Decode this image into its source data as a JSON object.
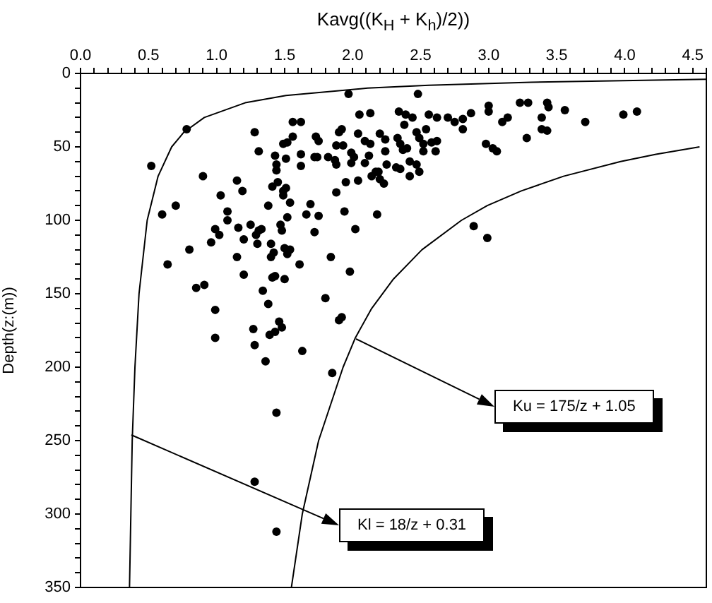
{
  "chart_data": {
    "type": "scatter",
    "xlabel": "Kavg((K$_{H}$ + K$_{h}$)/2))",
    "ylabel": "Depth(z:(m))",
    "xlim": [
      0,
      4.6
    ],
    "ylim": [
      350,
      0
    ],
    "xticks": [
      {
        "value": 0,
        "label": "0.0"
      },
      {
        "value": 0.1,
        "label": null
      },
      {
        "value": 0.2,
        "label": null
      },
      {
        "value": 0.3,
        "label": null
      },
      {
        "value": 0.4,
        "label": null
      },
      {
        "value": 0.5,
        "label": "0.5"
      },
      {
        "value": 0.6,
        "label": null
      },
      {
        "value": 0.7,
        "label": null
      },
      {
        "value": 0.8,
        "label": null
      },
      {
        "value": 0.9,
        "label": null
      },
      {
        "value": 1,
        "label": "1.0"
      },
      {
        "value": 1.1,
        "label": null
      },
      {
        "value": 1.2,
        "label": null
      },
      {
        "value": 1.3,
        "label": null
      },
      {
        "value": 1.4,
        "label": null
      },
      {
        "value": 1.5,
        "label": "1.5"
      },
      {
        "value": 1.6,
        "label": null
      },
      {
        "value": 1.7,
        "label": null
      },
      {
        "value": 1.8,
        "label": null
      },
      {
        "value": 1.9,
        "label": null
      },
      {
        "value": 2,
        "label": "2.0"
      },
      {
        "value": 2.1,
        "label": null
      },
      {
        "value": 2.2,
        "label": null
      },
      {
        "value": 2.3,
        "label": null
      },
      {
        "value": 2.4,
        "label": null
      },
      {
        "value": 2.5,
        "label": "2.5"
      },
      {
        "value": 2.6,
        "label": null
      },
      {
        "value": 2.7,
        "label": null
      },
      {
        "value": 2.8,
        "label": null
      },
      {
        "value": 2.9,
        "label": null
      },
      {
        "value": 3,
        "label": "3.0"
      },
      {
        "value": 3.1,
        "label": null
      },
      {
        "value": 3.2,
        "label": null
      },
      {
        "value": 3.3,
        "label": null
      },
      {
        "value": 3.4,
        "label": null
      },
      {
        "value": 3.5,
        "label": "3.5"
      },
      {
        "value": 3.6,
        "label": null
      },
      {
        "value": 3.7,
        "label": null
      },
      {
        "value": 3.8,
        "label": null
      },
      {
        "value": 3.9,
        "label": null
      },
      {
        "value": 4,
        "label": "4.0"
      },
      {
        "value": 4.1,
        "label": null
      },
      {
        "value": 4.2,
        "label": null
      },
      {
        "value": 4.3,
        "label": null
      },
      {
        "value": 4.4,
        "label": null
      },
      {
        "value": 4.5,
        "label": "4.5"
      },
      {
        "value": 4.6,
        "label": null
      }
    ],
    "yticks": [
      0,
      {
        "value": 10,
        "label": null
      },
      {
        "value": 20,
        "label": null
      },
      {
        "value": 30,
        "label": null
      },
      {
        "value": 40,
        "label": null
      },
      50,
      {
        "value": 60,
        "label": null
      },
      {
        "value": 70,
        "label": null
      },
      {
        "value": 80,
        "label": null
      },
      {
        "value": 90,
        "label": null
      },
      100,
      {
        "value": 110,
        "label": null
      },
      {
        "value": 120,
        "label": null
      },
      {
        "value": 130,
        "label": null
      },
      {
        "value": 140,
        "label": null
      },
      150,
      {
        "value": 160,
        "label": null
      },
      {
        "value": 170,
        "label": null
      },
      {
        "value": 180,
        "label": null
      },
      {
        "value": 190,
        "label": null
      },
      200,
      {
        "value": 210,
        "label": null
      },
      {
        "value": 220,
        "label": null
      },
      {
        "value": 230,
        "label": null
      },
      {
        "value": 240,
        "label": null
      },
      250,
      {
        "value": 260,
        "label": null
      },
      {
        "value": 270,
        "label": null
      },
      {
        "value": 280,
        "label": null
      },
      {
        "value": 290,
        "label": null
      },
      300,
      {
        "value": 310,
        "label": null
      },
      {
        "value": 320,
        "label": null
      },
      {
        "value": 330,
        "label": null
      },
      {
        "value": 340,
        "label": null
      },
      350
    ],
    "grid": false,
    "legend": false,
    "series": [
      {
        "marker": "circle",
        "color": "#000000",
        "x": [
          1.97,
          2.48,
          0.78,
          1.28,
          0.52,
          0.9,
          1.56,
          1.62,
          2.05,
          2.13,
          2.34,
          2.39,
          2.44,
          2.38,
          2.56,
          2.62,
          2.7,
          2.75,
          2.81,
          2.87,
          3.0,
          3.0,
          3.14,
          3.1,
          3.23,
          3.29,
          3.43,
          3.44,
          3.56,
          3.39,
          3.39,
          3.43,
          3.28,
          3.71,
          3.99,
          4.09,
          2.81,
          2.98,
          3.03,
          3.06,
          1.92,
          1.9,
          1.73,
          1.75,
          1.56,
          1.49,
          2.04,
          2.09,
          2.13,
          2.2,
          2.24,
          2.47,
          2.54,
          2.33,
          2.35,
          2.49,
          2.52,
          2.58,
          2.62,
          2.37,
          2.4,
          2.52,
          2.61,
          1.88,
          1.93,
          1.99,
          2.01,
          2.12,
          2.24,
          1.62,
          1.72,
          1.74,
          1.82,
          1.87,
          1.88,
          1.62,
          1.99,
          2.09,
          2.17,
          2.19,
          2.25,
          2.32,
          2.35,
          2.42,
          2.47,
          2.49,
          2.42,
          1.95,
          2.04,
          2.14,
          2.2,
          2.23,
          1.88,
          1.49,
          1.54,
          1.69,
          1.66,
          1.75,
          1.94,
          2.18,
          1.52,
          1.72,
          2.02,
          2.89,
          2.99,
          1.5,
          1.52,
          1.61,
          1.84,
          1.98,
          1.8,
          1.92,
          1.9,
          1.31,
          1.52,
          1.43,
          1.44,
          1.44,
          1.51,
          1.15,
          1.19,
          1.41,
          1.45,
          1.51,
          1.49,
          1.38,
          1.03,
          1.08,
          1.08,
          1.25,
          1.31,
          1.33,
          1.29,
          1.16,
          0.99,
          1.02,
          0.96,
          1.2,
          1.3,
          1.4,
          1.42,
          1.47,
          1.48,
          1.54,
          1.4,
          1.15,
          1.2,
          0.64,
          0.6,
          0.7,
          0.8,
          1.41,
          1.43,
          1.5,
          0.85,
          0.91,
          1.34,
          1.38,
          0.99,
          1.27,
          0.99,
          1.46,
          1.48,
          1.43,
          1.39,
          1.28,
          1.63,
          1.36,
          1.85,
          1.44,
          1.28,
          1.44
        ],
        "values": [
          14,
          14,
          38,
          40,
          63,
          70,
          33,
          33,
          28,
          27,
          26,
          28,
          30,
          35,
          28,
          30,
          30,
          33,
          31,
          27,
          22,
          26,
          30,
          33,
          20,
          20,
          20,
          23,
          25,
          30,
          38,
          39,
          44,
          33,
          28,
          26,
          38,
          48,
          51,
          53,
          38,
          40,
          43,
          46,
          43,
          48,
          41,
          46,
          48,
          41,
          45,
          40,
          38,
          44,
          48,
          44,
          48,
          47,
          46,
          52,
          51,
          53,
          53,
          49,
          49,
          54,
          57,
          56,
          53,
          55,
          57,
          57,
          57,
          59,
          62,
          63,
          61,
          61,
          67,
          67,
          62,
          64,
          65,
          60,
          62,
          67,
          70,
          74,
          73,
          70,
          72,
          75,
          81,
          80,
          88,
          89,
          96,
          97,
          94,
          96,
          98,
          108,
          106,
          104,
          112,
          119,
          123,
          130,
          125,
          135,
          153,
          166,
          168,
          53,
          47,
          56,
          62,
          66,
          58,
          73,
          80,
          77,
          74,
          78,
          83,
          90,
          83,
          94,
          100,
          103,
          107,
          106,
          110,
          105,
          106,
          110,
          115,
          113,
          116,
          116,
          122,
          103,
          107,
          120,
          125,
          125,
          137,
          130,
          96,
          90,
          120,
          139,
          138,
          140,
          146,
          144,
          148,
          157,
          161,
          174,
          180,
          169,
          173,
          176,
          178,
          185,
          189,
          196,
          204,
          231,
          278,
          312
        ]
      },
      {
        "type": "line",
        "marker": "none",
        "color": "#000000",
        "x": [
          4.6,
          3.91,
          3.31,
          2.56,
          2.11,
          1.51,
          1.21,
          0.91,
          0.76,
          0.67,
          0.57,
          0.49,
          0.43,
          0.4,
          0.38,
          0.37,
          0.36
        ],
        "values": [
          4,
          5,
          6,
          8,
          10,
          15,
          20,
          30,
          40,
          50,
          70,
          100,
          150,
          200,
          250,
          300,
          350
        ]
      },
      {
        "type": "line",
        "marker": "none",
        "color": "#000000",
        "x": [
          4.55,
          4.23,
          3.97,
          3.55,
          3.24,
          2.99,
          2.8,
          2.51,
          2.3,
          2.14,
          2.02,
          1.93,
          1.75,
          1.63,
          1.55
        ],
        "values": [
          50,
          55,
          60,
          70,
          80,
          90,
          100,
          120,
          140,
          160,
          180,
          200,
          250,
          300,
          350
        ]
      }
    ],
    "annotations": [
      "Ku = 175/z + 1.05",
      "Kl = 18/z + 0.31"
    ]
  }
}
